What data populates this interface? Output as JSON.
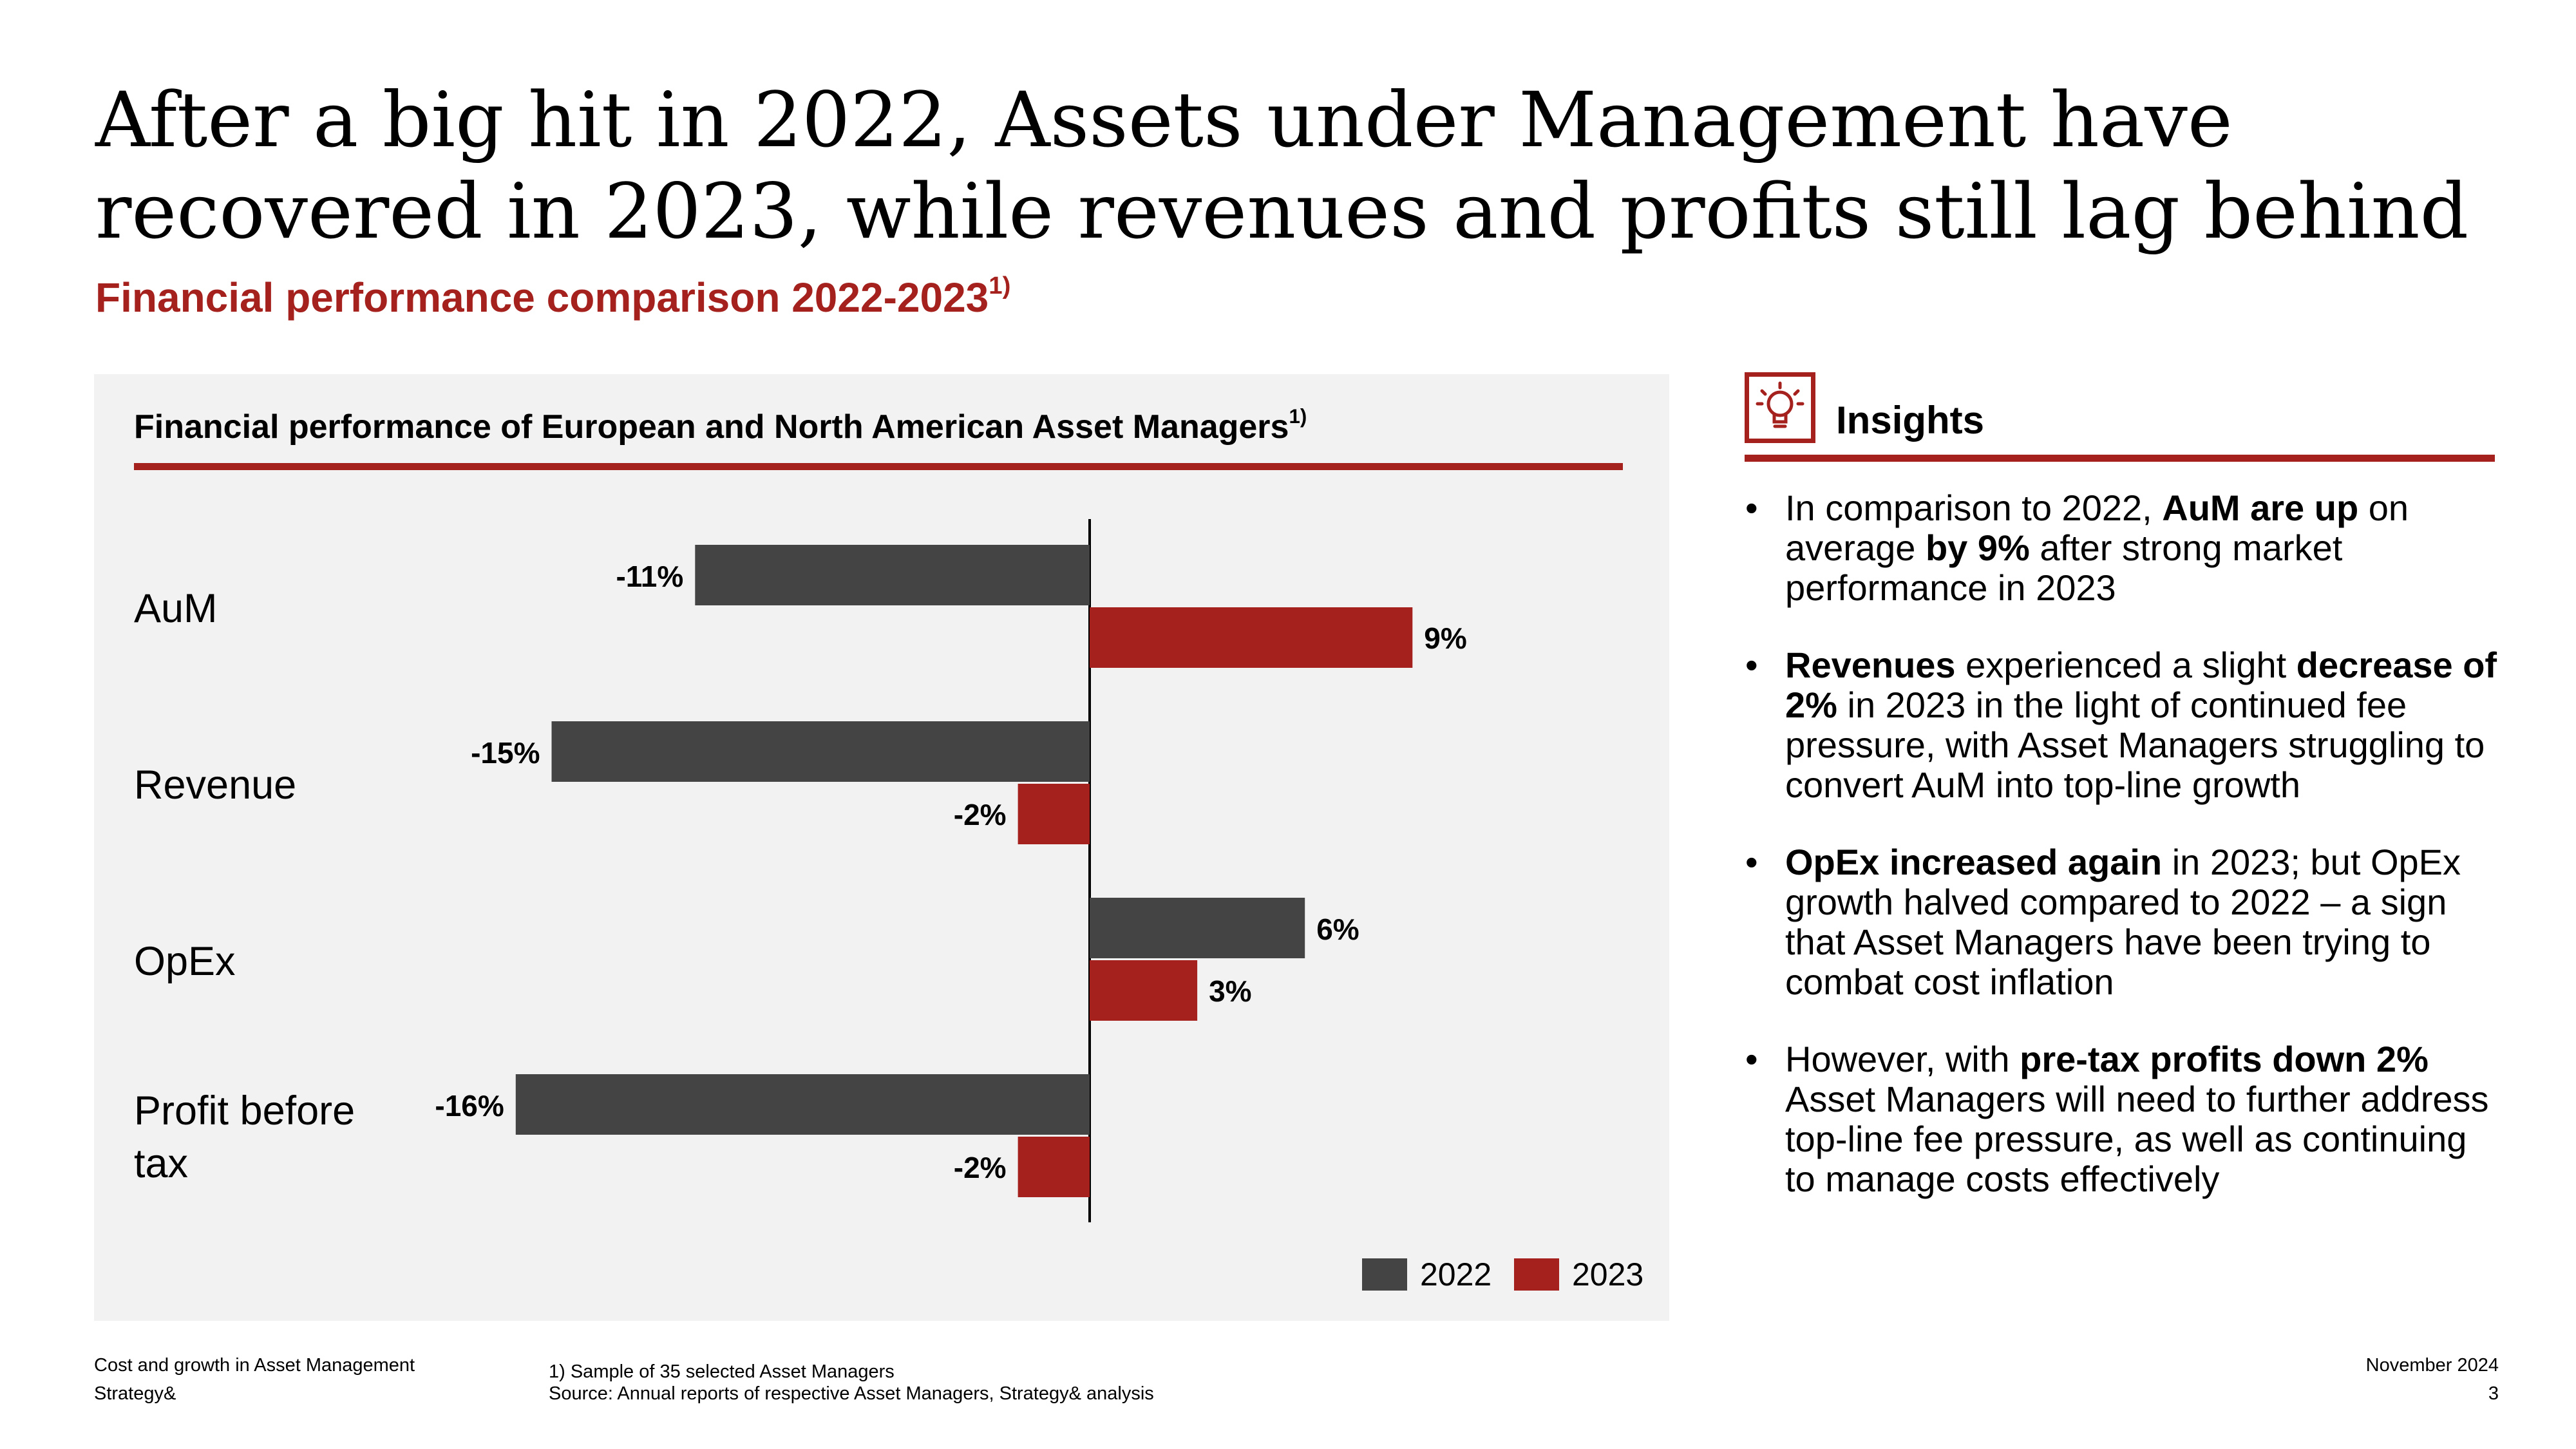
{
  "title": "After a big hit in 2022, Assets under Management have recovered in 2023, while revenues and profits still lag behind",
  "subtitle": {
    "text": "Financial performance comparison 2022-2023",
    "footnote_mark": "1)"
  },
  "panel": {
    "title": "Financial performance of European and North American Asset Managers",
    "footnote_mark": "1)"
  },
  "chart_data": {
    "type": "bar",
    "orientation": "horizontal",
    "title": "Financial performance of European and North American Asset Managers",
    "categories": [
      "AuM",
      "Revenue",
      "OpEx",
      "Profit before tax"
    ],
    "series": [
      {
        "name": "2022",
        "color": "#444444",
        "values": [
          -11,
          -15,
          6,
          -16
        ],
        "labels": [
          "-11%",
          "-15%",
          "6%",
          "-16%"
        ]
      },
      {
        "name": "2023",
        "color": "#a5211e",
        "values": [
          9,
          -2,
          3,
          -2
        ],
        "labels": [
          "9%",
          "-2%",
          "3%",
          "-2%"
        ]
      }
    ],
    "xlim": [
      -16,
      9
    ],
    "unit": "%",
    "legend": "bottom-right",
    "grid": false
  },
  "legend": {
    "items": [
      "2022",
      "2023"
    ]
  },
  "insights": {
    "title": "Insights",
    "bullets": [
      [
        {
          "t": "In comparison to 2022, "
        },
        {
          "t": "AuM are up",
          "b": true
        },
        {
          "t": " on average "
        },
        {
          "t": "by 9%",
          "b": true
        },
        {
          "t": " after strong market performance in 2023"
        }
      ],
      [
        {
          "t": "Revenues",
          "b": true
        },
        {
          "t": " experienced a slight "
        },
        {
          "t": "decrease of 2%",
          "b": true
        },
        {
          "t": " in 2023 in the light of continued fee pressure, with Asset Managers struggling to convert AuM into top-line growth"
        }
      ],
      [
        {
          "t": "OpEx increased again",
          "b": true
        },
        {
          "t": " in 2023; but OpEx growth halved compared to 2022 – a sign that Asset Managers have been trying to combat cost inflation"
        }
      ],
      [
        {
          "t": "However, with "
        },
        {
          "t": "pre-tax profits down 2%",
          "b": true
        },
        {
          "t": " Asset Managers will need to further address top-line fee pressure, as well as continuing to manage costs effectively"
        }
      ]
    ]
  },
  "footer": {
    "left_line1": "Cost and growth in Asset Management",
    "left_line2": "Strategy&",
    "note_line1": "1) Sample of 35 selected Asset Managers",
    "note_line2": "Source: Annual reports of respective Asset Managers, Strategy& analysis",
    "date": "November 2024",
    "page": "3"
  },
  "colors": {
    "accent": "#a5211e",
    "dark_bar": "#444444",
    "panel_bg": "#f2f2f2"
  }
}
